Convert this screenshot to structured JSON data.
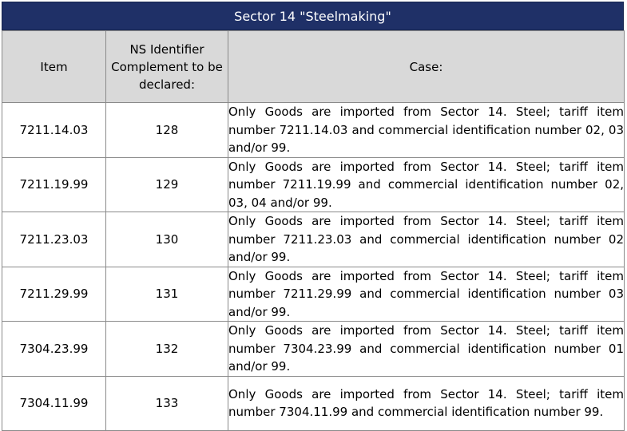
{
  "title": "Sector 14 \"Steelmaking\"",
  "headers": {
    "item": "Item",
    "ns": "NS Identifier Complement to be declared:",
    "case": "Case:"
  },
  "rows": [
    {
      "item": "7211.14.03",
      "ns": "128",
      "case": "Only Goods are imported from Sector 14. Steel; tariff item number 7211.14.03 and commercial identification number 02, 03 and/or 99."
    },
    {
      "item": "7211.19.99",
      "ns": "129",
      "case": "Only Goods are imported from Sector 14. Steel; tariff item number 7211.19.99 and commercial identification number 02, 03, 04 and/or 99."
    },
    {
      "item": "7211.23.03",
      "ns": "130",
      "case": "Only Goods are imported from Sector 14. Steel; tariff item number 7211.23.03 and commercial identification number 02 and/or 99."
    },
    {
      "item": "7211.29.99",
      "ns": "131",
      "case": "Only Goods are imported from Sector 14. Steel; tariff item number 7211.29.99 and commercial identification number 03 and/or 99."
    },
    {
      "item": "7304.23.99",
      "ns": "132",
      "case": "Only Goods are imported from Sector 14. Steel; tariff item number 7304.23.99 and commercial identification number 01 and/or 99."
    },
    {
      "item": "7304.11.99",
      "ns": "133",
      "case": "Only Goods are imported from Sector 14. Steel; tariff item number 7304.11.99 and commercial identification number 99."
    }
  ],
  "colors": {
    "title_background": "#1f3067",
    "header_background": "#d9d9d9",
    "border": "#8a8a8a"
  }
}
